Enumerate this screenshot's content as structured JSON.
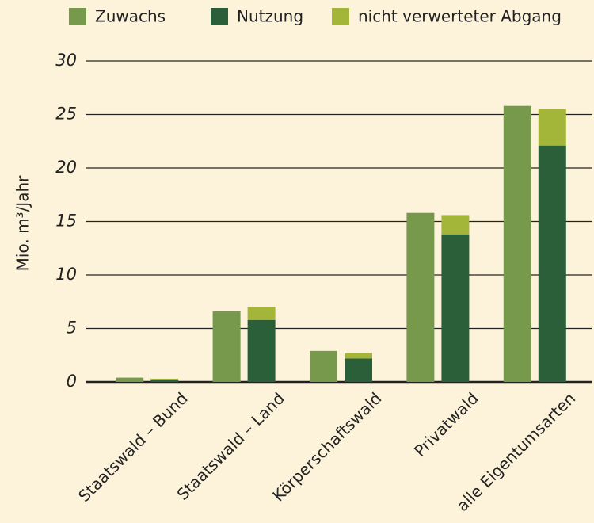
{
  "chart_data": {
    "type": "bar",
    "ylabel": "Mio. m³/Jahr",
    "categories": [
      "Staatswald – Bund",
      "Staatswald – Land",
      "Körperschaftswald",
      "Privatwald",
      "alle Eigentumsarten"
    ],
    "series": [
      {
        "name": "Zuwachs",
        "color": "#76994c",
        "values": [
          0.4,
          6.6,
          2.9,
          15.8,
          25.8
        ]
      },
      {
        "name": "Nutzung",
        "color": "#2b5f3a",
        "values": [
          0.2,
          5.8,
          2.2,
          13.8,
          22.1
        ]
      },
      {
        "name": "nicht verwerteter Abgang",
        "color": "#a4b63a",
        "values": [
          0.1,
          1.2,
          0.5,
          1.8,
          3.4
        ]
      }
    ],
    "ylim": [
      0,
      30
    ],
    "yticks": [
      0,
      5,
      10,
      15,
      20,
      25,
      30
    ],
    "grid": true
  }
}
